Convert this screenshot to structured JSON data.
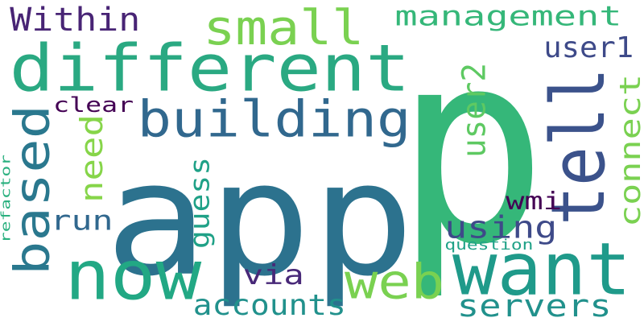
{
  "words": [
    {
      "text": "p",
      "color": "#35b779"
    },
    {
      "text": "app",
      "color": "#2c728e"
    },
    {
      "text": "tell",
      "color": "#3b528b"
    },
    {
      "text": "want",
      "color": "#1f9a8a"
    },
    {
      "text": "different",
      "color": "#2aa982"
    },
    {
      "text": "building",
      "color": "#31688e"
    },
    {
      "text": "now",
      "color": "#22a884"
    },
    {
      "text": "web",
      "color": "#7ad151"
    },
    {
      "text": "small",
      "color": "#7ad151"
    },
    {
      "text": "based",
      "color": "#2a788e"
    },
    {
      "text": "servers",
      "color": "#21918c"
    },
    {
      "text": "accounts",
      "color": "#21918c"
    },
    {
      "text": "management",
      "color": "#35b779"
    },
    {
      "text": "Within",
      "color": "#482475"
    },
    {
      "text": "connect",
      "color": "#7ad151"
    },
    {
      "text": "using",
      "color": "#3e4a89"
    },
    {
      "text": "user1",
      "color": "#3e4a89"
    },
    {
      "text": "user2",
      "color": "#5ec962"
    },
    {
      "text": "need",
      "color": "#86d549"
    },
    {
      "text": "guess",
      "color": "#1fa187"
    },
    {
      "text": "run",
      "color": "#31688e"
    },
    {
      "text": "via",
      "color": "#482878"
    },
    {
      "text": "wmi",
      "color": "#440154"
    },
    {
      "text": "clear",
      "color": "#440154"
    },
    {
      "text": "question",
      "color": "#1fa187"
    },
    {
      "text": "refactor",
      "color": "#2ab07f"
    }
  ]
}
